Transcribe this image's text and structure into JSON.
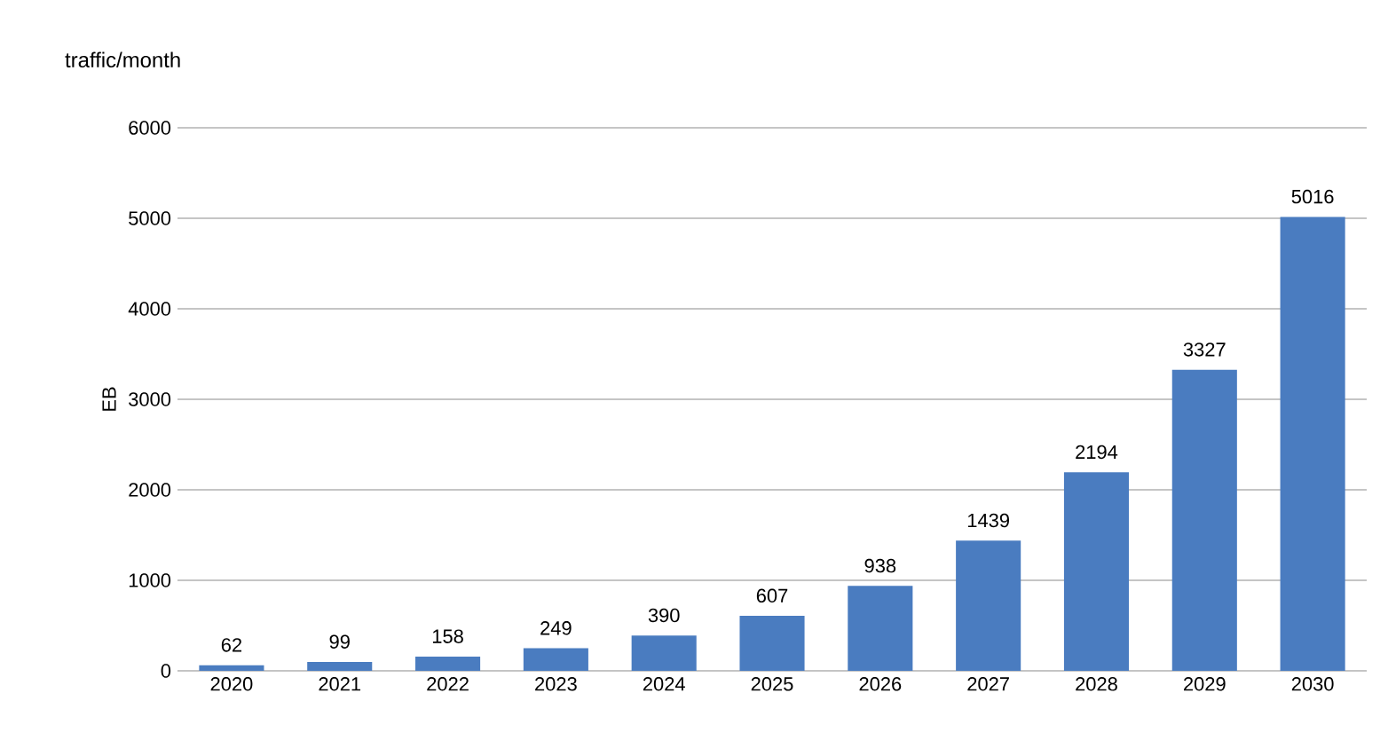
{
  "chart_data": {
    "type": "bar",
    "title": "traffic/month",
    "ylabel": "EB",
    "categories": [
      "2020",
      "2021",
      "2022",
      "2023",
      "2024",
      "2025",
      "2026",
      "2027",
      "2028",
      "2029",
      "2030"
    ],
    "values": [
      62,
      99,
      158,
      249,
      390,
      607,
      938,
      1439,
      2194,
      3327,
      5016
    ],
    "color": "#4a7cc0",
    "ylim": [
      0,
      6000
    ],
    "yticks": [
      0,
      1000,
      2000,
      3000,
      4000,
      5000,
      6000
    ],
    "grid": "y",
    "data_labels": true
  }
}
